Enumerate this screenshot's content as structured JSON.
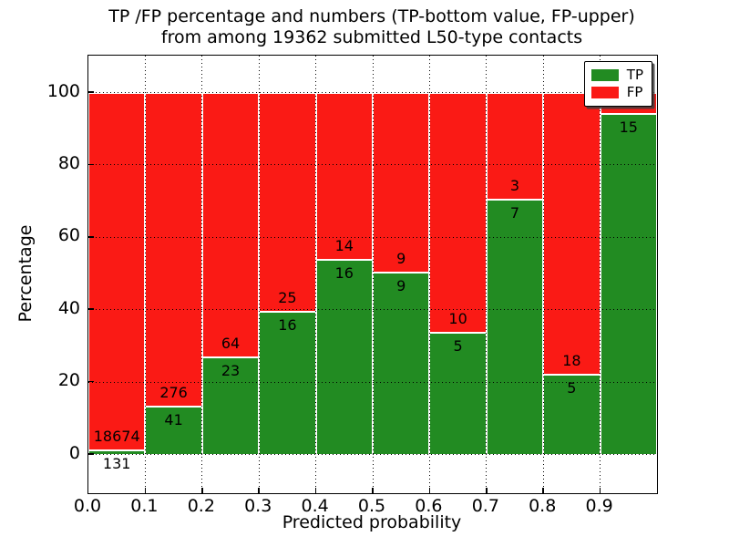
{
  "figure": {
    "background": "#ffffff"
  },
  "chart_data": {
    "type": "bar",
    "stacked": true,
    "title_line1": "TP /FP percentage and numbers (TP-bottom value, FP-upper)",
    "title_line2": "from among 19362 submitted L50-type contacts",
    "xlabel": "Predicted probability",
    "ylabel": "Percentage",
    "xlim": [
      0.0,
      1.0
    ],
    "ylim": [
      -10.8,
      110.1
    ],
    "ytick_labels": [
      "0",
      "20",
      "40",
      "60",
      "80",
      "100"
    ],
    "ytick_values": [
      0,
      20,
      40,
      60,
      80,
      100
    ],
    "xtick_labels": [
      "0.0",
      "0.1",
      "0.2",
      "0.3",
      "0.4",
      "0.5",
      "0.6",
      "0.7",
      "0.8",
      "0.9"
    ],
    "xtick_values": [
      0.0,
      0.1,
      0.2,
      0.3,
      0.4,
      0.5,
      0.6,
      0.7,
      0.8,
      0.9
    ],
    "grid": "dotted-black-both-axes",
    "bar_edge_color": "#ffffff",
    "colors": {
      "tp": "#228b22",
      "fp": "#fa1a15"
    },
    "legend": {
      "position": "upper-right",
      "entries": [
        {
          "label": "TP",
          "color": "#228b22"
        },
        {
          "label": "FP",
          "color": "#fa1a15"
        }
      ]
    },
    "bins": [
      {
        "range": "0.0-0.1",
        "tp": 131,
        "fp": 18674,
        "tp_pct": 0.7
      },
      {
        "range": "0.1-0.2",
        "tp": 41,
        "fp": 276,
        "tp_pct": 12.93
      },
      {
        "range": "0.2-0.3",
        "tp": 23,
        "fp": 64,
        "tp_pct": 26.44
      },
      {
        "range": "0.3-0.4",
        "tp": 16,
        "fp": 25,
        "tp_pct": 39.02
      },
      {
        "range": "0.4-0.5",
        "tp": 16,
        "fp": 14,
        "tp_pct": 53.33
      },
      {
        "range": "0.5-0.6",
        "tp": 9,
        "fp": 9,
        "tp_pct": 50.0
      },
      {
        "range": "0.6-0.7",
        "tp": 5,
        "fp": 10,
        "tp_pct": 33.33
      },
      {
        "range": "0.7-0.8",
        "tp": 7,
        "fp": 3,
        "tp_pct": 70.0
      },
      {
        "range": "0.8-0.9",
        "tp": 5,
        "fp": 18,
        "tp_pct": 21.74
      },
      {
        "range": "0.9-1.0",
        "tp": 15,
        "fp": 1,
        "tp_pct": 93.75
      }
    ]
  }
}
